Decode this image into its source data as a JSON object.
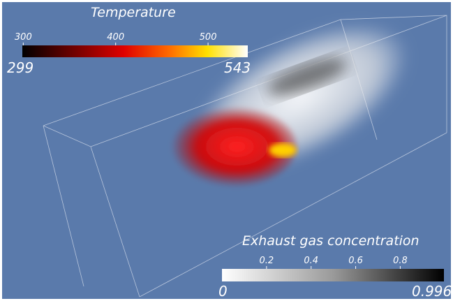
{
  "temperature_legend": {
    "title": "Temperature",
    "min": 299,
    "max": 543,
    "ticks": [
      300,
      400,
      500
    ]
  },
  "exhaust_legend": {
    "title": "Exhaust gas concentration",
    "min": 0,
    "max": 0.996,
    "ticks": [
      0.2,
      0.4,
      0.6,
      0.8
    ]
  }
}
